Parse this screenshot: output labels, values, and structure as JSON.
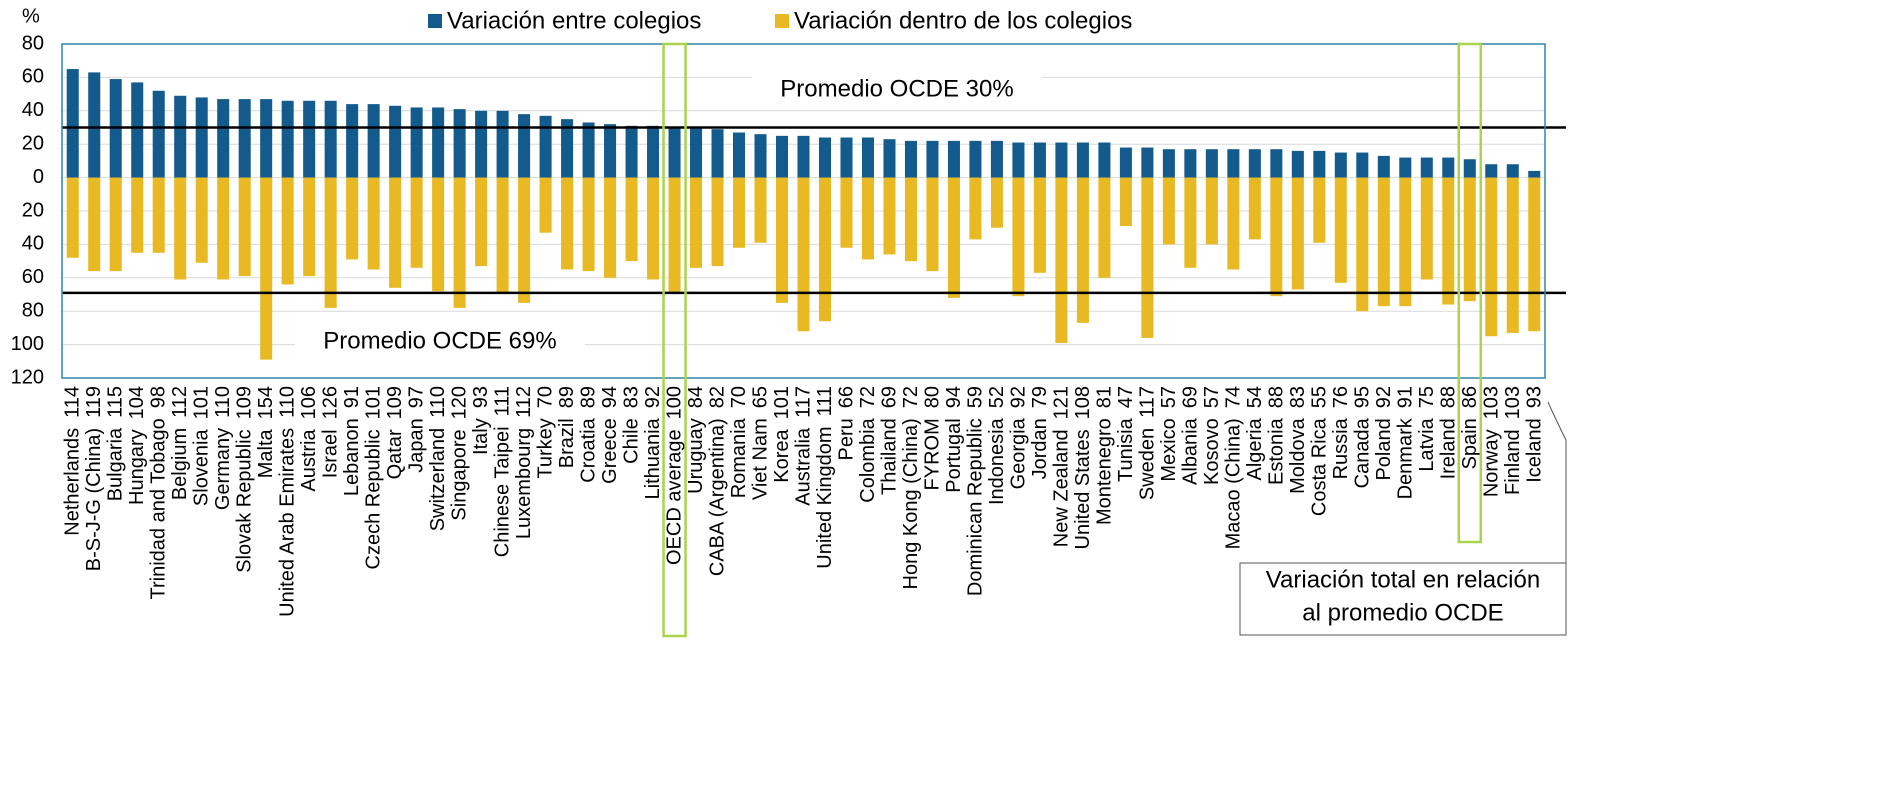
{
  "chart_data": {
    "type": "bar",
    "y_unit": "%",
    "categories": [
      "Netherlands",
      "B-S-J-G (China)",
      "Bulgaria",
      "Hungary",
      "Trinidad and Tobago",
      "Belgium",
      "Slovenia",
      "Germany",
      "Slovak Republic",
      "Malta",
      "United Arab Emirates",
      "Austria",
      "Israel",
      "Lebanon",
      "Czech Republic",
      "Qatar",
      "Japan",
      "Switzerland",
      "Singapore",
      "Italy",
      "Chinese Taipei",
      "Luxembourg",
      "Turkey",
      "Brazil",
      "Croatia",
      "Greece",
      "Chile",
      "Lithuania",
      "OECD average",
      "Uruguay",
      "CABA (Argentina)",
      "Romania",
      "Viet Nam",
      "Korea",
      "Australia",
      "United Kingdom",
      "Peru",
      "Colombia",
      "Thailand",
      "Hong Kong (China)",
      "FYROM",
      "Portugal",
      "Dominican Republic",
      "Indonesia",
      "Georgia",
      "Jordan",
      "New Zealand",
      "United States",
      "Montenegro",
      "Tunisia",
      "Sweden",
      "Mexico",
      "Albania",
      "Kosovo",
      "Macao (China)",
      "Algeria",
      "Estonia",
      "Moldova",
      "Costa Rica",
      "Russia",
      "Canada",
      "Poland",
      "Denmark",
      "Latvia",
      "Ireland",
      "Spain",
      "Norway",
      "Finland",
      "Iceland"
    ],
    "totals": [
      114,
      119,
      115,
      104,
      98,
      112,
      101,
      110,
      109,
      154,
      110,
      106,
      126,
      91,
      101,
      109,
      97,
      110,
      120,
      93,
      111,
      112,
      70,
      89,
      89,
      94,
      83,
      92,
      100,
      84,
      82,
      70,
      65,
      101,
      117,
      111,
      66,
      72,
      69,
      72,
      80,
      94,
      59,
      52,
      92,
      79,
      121,
      108,
      81,
      47,
      117,
      57,
      69,
      57,
      74,
      54,
      88,
      83,
      55,
      76,
      95,
      92,
      91,
      75,
      88,
      86,
      103,
      103,
      93
    ],
    "series": [
      {
        "name": "Variación entre colegios",
        "color": "#135b8c",
        "values": [
          65,
          63,
          59,
          57,
          52,
          49,
          48,
          47,
          47,
          47,
          46,
          46,
          46,
          44,
          44,
          43,
          42,
          42,
          41,
          40,
          40,
          38,
          37,
          35,
          33,
          32,
          31,
          31,
          30,
          30,
          29,
          27,
          26,
          25,
          25,
          24,
          24,
          24,
          23,
          22,
          22,
          22,
          22,
          22,
          21,
          21,
          21,
          21,
          21,
          18,
          18,
          17,
          17,
          17,
          17,
          17,
          17,
          16,
          16,
          15,
          15,
          13,
          12,
          12,
          12,
          11,
          8,
          8,
          4
        ]
      },
      {
        "name": "Variación dentro de los colegios",
        "color": "#e8b923",
        "values": [
          -48,
          -56,
          -56,
          -45,
          -45,
          -61,
          -51,
          -61,
          -59,
          -109,
          -64,
          -59,
          -78,
          -49,
          -55,
          -66,
          -54,
          -68,
          -78,
          -53,
          -69,
          -75,
          -33,
          -55,
          -56,
          -60,
          -50,
          -61,
          -69,
          -54,
          -53,
          -42,
          -39,
          -75,
          -92,
          -86,
          -42,
          -49,
          -46,
          -50,
          -56,
          -72,
          -37,
          -30,
          -71,
          -57,
          -99,
          -87,
          -60,
          -29,
          -96,
          -40,
          -54,
          -40,
          -55,
          -37,
          -71,
          -67,
          -39,
          -63,
          -80,
          -77,
          -77,
          -61,
          -76,
          -74,
          -95,
          -93,
          -92
        ]
      }
    ],
    "ylim": [
      -120,
      80
    ],
    "yticks": [
      80,
      60,
      40,
      20,
      0,
      {
        "value": -20,
        "label": "20"
      },
      {
        "value": -40,
        "label": "40"
      },
      {
        "value": -60,
        "label": "60"
      },
      {
        "value": -80,
        "label": "80"
      },
      {
        "value": -100,
        "label": "100"
      },
      {
        "value": -120,
        "label": "120"
      }
    ],
    "grid": true,
    "reference_lines": [
      {
        "value": 30,
        "label": "Promedio OCDE 30%"
      },
      {
        "value": -69,
        "label": "Promedio OCDE 69%"
      }
    ],
    "highlight": [
      "OECD average",
      "Spain"
    ],
    "annotation": [
      "Variación total en relación",
      "al promedio OCDE"
    ]
  }
}
